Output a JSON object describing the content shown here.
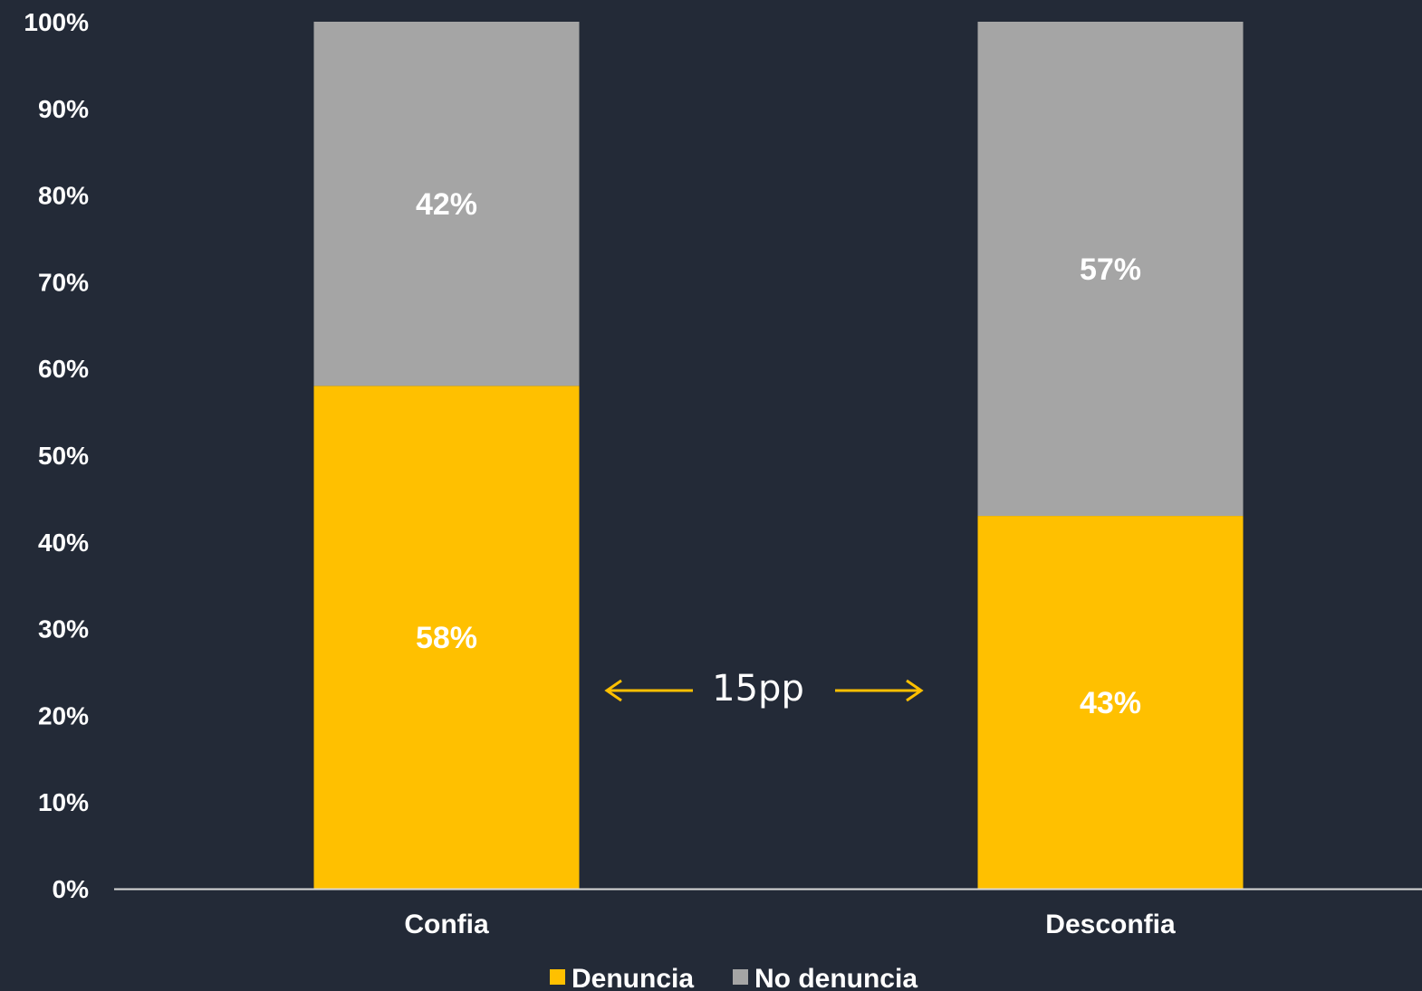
{
  "chart_data": {
    "type": "bar",
    "stacked": true,
    "categories": [
      "Confia",
      "Desconfia"
    ],
    "series": [
      {
        "name": "Denuncia",
        "values": [
          58,
          43
        ],
        "color": "#ffc000",
        "labels": [
          "58%",
          "43%"
        ]
      },
      {
        "name": "No denuncia",
        "values": [
          42,
          57
        ],
        "color": "#a5a5a5",
        "labels": [
          "42%",
          "57%"
        ]
      }
    ],
    "ylim": [
      0,
      100
    ],
    "yticks": [
      0,
      10,
      20,
      30,
      40,
      50,
      60,
      70,
      80,
      90,
      100
    ],
    "ytick_labels": [
      "0%",
      "10%",
      "20%",
      "30%",
      "40%",
      "50%",
      "60%",
      "70%",
      "80%",
      "90%",
      "100%"
    ],
    "grid": false,
    "legend_position": "bottom",
    "annotation": {
      "text": "15pp",
      "color": "#ffc000"
    },
    "colors": {
      "background": "#232a37",
      "text": "#ffffff",
      "axis": "#d9d9d9"
    }
  }
}
